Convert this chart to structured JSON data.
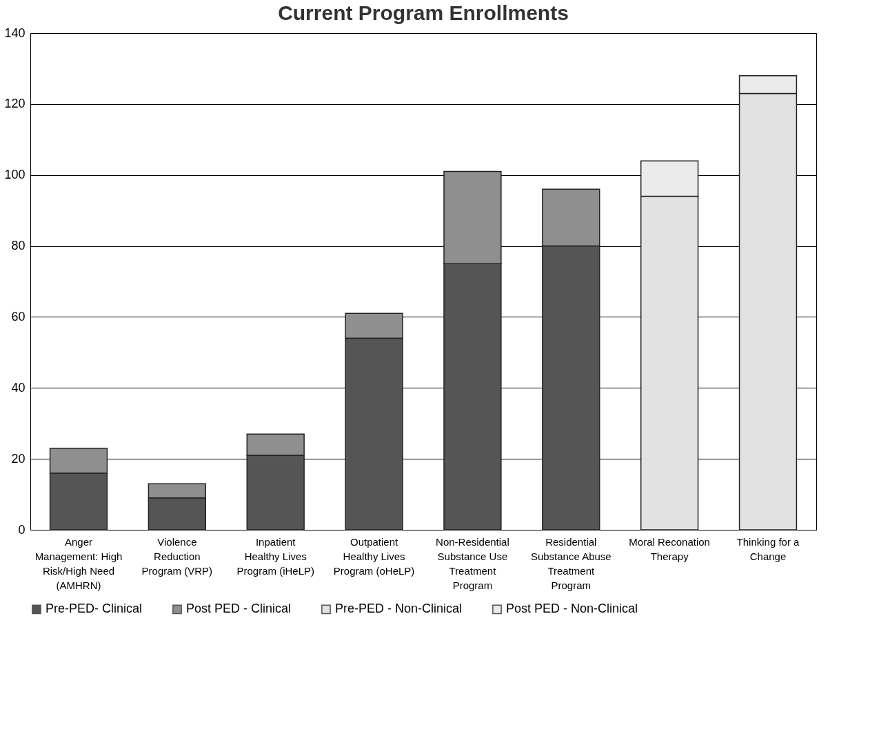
{
  "chart_data": {
    "type": "bar",
    "title": "Current Program Enrollments",
    "categories": [
      "Anger Management: High Risk/High Need (AMHRN)",
      "Violence Reduction Program (VRP)",
      "Inpatient Healthy Lives Program (iHeLP)",
      "Outpatient Healthy Lives Program (oHeLP)",
      "Non-Residential Substance Use Treatment Program",
      "Residential Substance Abuse Treatment Program",
      "Moral Reconation Therapy",
      "Thinking for a Change"
    ],
    "stacked": true,
    "series": [
      {
        "name": "Pre-PED- Clinical",
        "color": "#555555",
        "values": [
          16,
          9,
          21,
          54,
          75,
          80,
          null,
          null
        ]
      },
      {
        "name": "Post PED - Clinical",
        "color": "#8f8f8f",
        "values": [
          7,
          4,
          6,
          7,
          26,
          16,
          null,
          null
        ]
      },
      {
        "name": "Pre-PED - Non-Clinical",
        "color": "#e2e2e2",
        "values": [
          null,
          null,
          null,
          null,
          null,
          null,
          94,
          123
        ]
      },
      {
        "name": "Post PED - Non-Clinical",
        "color": "#ebebeb",
        "values": [
          null,
          null,
          null,
          null,
          null,
          null,
          10,
          5
        ]
      }
    ],
    "ylim": [
      0,
      140
    ],
    "yticks": [
      0,
      20,
      40,
      60,
      80,
      100,
      120,
      140
    ],
    "grid": "y",
    "legend": "bottom"
  }
}
